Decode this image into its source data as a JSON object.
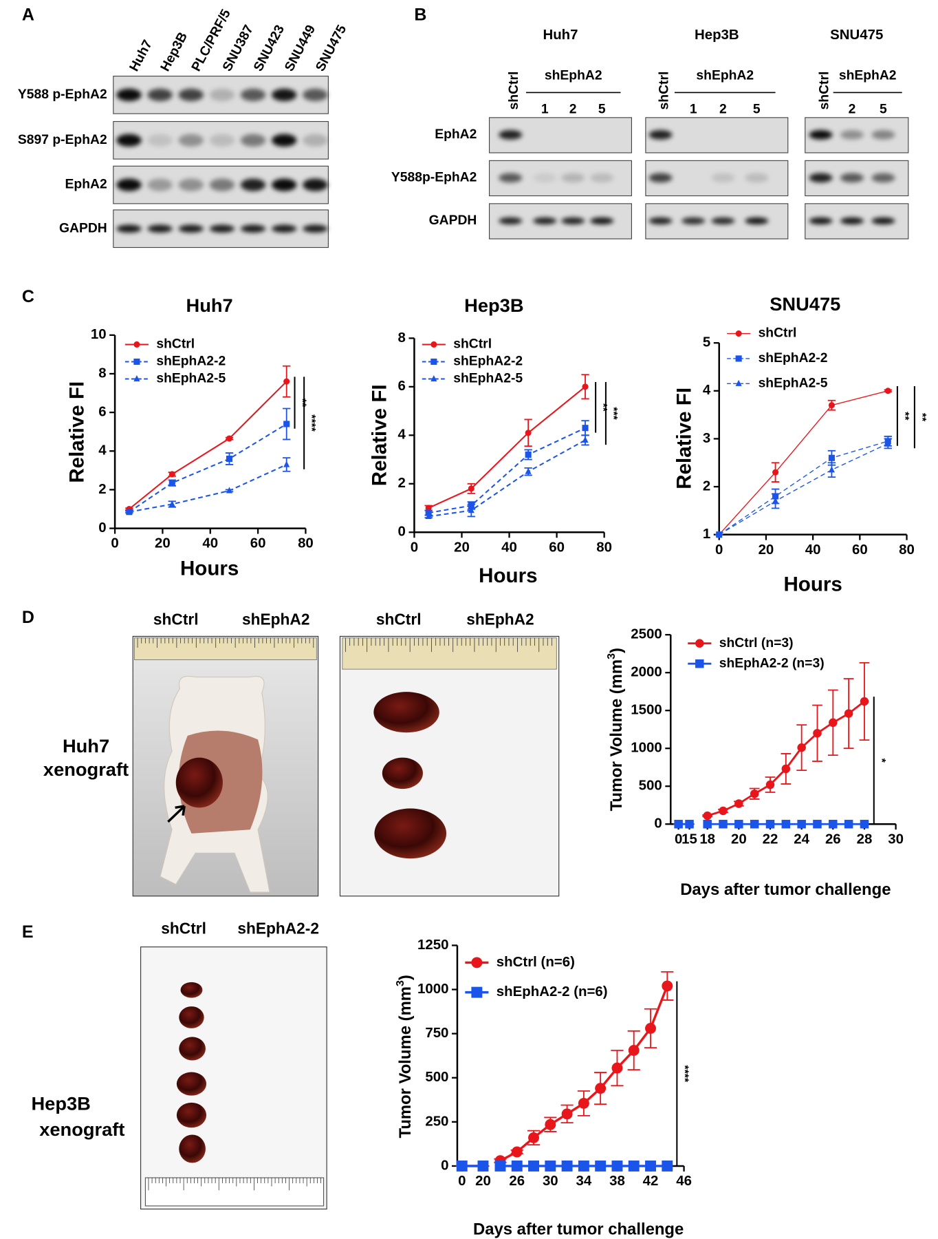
{
  "panel_labels": [
    "A",
    "B",
    "C",
    "D",
    "E"
  ],
  "blot_a": {
    "lanes": [
      "Huh7",
      "Hep3B",
      "PLC/PRF/5",
      "SNU387",
      "SNU423",
      "SNU449",
      "SNU475"
    ],
    "rows": [
      "Y588 p-EphA2",
      "S897 p-EphA2",
      "EphA2",
      "GAPDH"
    ]
  },
  "blot_b": {
    "rows": [
      "EphA2",
      "Y588p-EphA2",
      "GAPDH"
    ],
    "groups": [
      {
        "title": "Huh7",
        "control": "shCtrl",
        "knockdown": "shEphA2",
        "clones": [
          "1",
          "2",
          "5"
        ]
      },
      {
        "title": "Hep3B",
        "control": "shCtrl",
        "knockdown": "shEphA2",
        "clones": [
          "1",
          "2",
          "5"
        ]
      },
      {
        "title": "SNU475",
        "control": "shCtrl",
        "knockdown": "shEphA2",
        "clones": [
          "2",
          "5"
        ]
      }
    ]
  },
  "xenograft_d": {
    "model": [
      "Huh7",
      "xenograft"
    ],
    "photo_labels": [
      [
        "shCtrl",
        "shEphA2"
      ],
      [
        "shCtrl",
        "shEphA2"
      ]
    ]
  },
  "xenograft_e": {
    "model": [
      "Hep3B",
      "xenograft"
    ],
    "photo_labels": [
      "shCtrl",
      "shEphA2-2"
    ]
  },
  "chart_data": [
    {
      "type": "line",
      "title": "Huh7",
      "xlabel": "Hours",
      "ylabel": "Relative FI",
      "x": [
        6,
        24,
        48,
        72
      ],
      "xlim": [
        0,
        80
      ],
      "xticks": [
        0,
        20,
        40,
        60,
        80
      ],
      "ylim": [
        0,
        10
      ],
      "yticks": [
        0,
        2,
        4,
        6,
        8,
        10
      ],
      "series": [
        {
          "name": "shCtrl",
          "color": "#e8161b",
          "marker": "circle",
          "dashed": false,
          "values": [
            1,
            2.8,
            4.65,
            7.6
          ],
          "errors": [
            0.05,
            0.1,
            0.05,
            0.8
          ]
        },
        {
          "name": "shEphA2-2",
          "color": "#1b54e8",
          "marker": "square",
          "dashed": true,
          "values": [
            0.85,
            2.35,
            3.6,
            5.4
          ],
          "errors": [
            0.05,
            0.15,
            0.3,
            0.8
          ]
        },
        {
          "name": "shEphA2-5",
          "color": "#1b54e8",
          "marker": "triangle",
          "dashed": true,
          "values": [
            0.85,
            1.25,
            1.95,
            3.3
          ],
          "errors": [
            0.05,
            0.15,
            0.05,
            0.35
          ]
        }
      ],
      "annotations": [
        "**",
        "****"
      ]
    },
    {
      "type": "line",
      "title": "Hep3B",
      "xlabel": "Hours",
      "ylabel": "Relative FI",
      "x": [
        6,
        24,
        48,
        72
      ],
      "xlim": [
        0,
        80
      ],
      "xticks": [
        0,
        20,
        40,
        60,
        80
      ],
      "ylim": [
        0,
        8
      ],
      "yticks": [
        0,
        2,
        4,
        6,
        8
      ],
      "series": [
        {
          "name": "shCtrl",
          "color": "#e8161b",
          "marker": "circle",
          "dashed": false,
          "values": [
            1,
            1.8,
            4.1,
            6.0
          ],
          "errors": [
            0.1,
            0.2,
            0.55,
            0.5
          ]
        },
        {
          "name": "shEphA2-2",
          "color": "#1b54e8",
          "marker": "square",
          "dashed": true,
          "values": [
            0.8,
            1.1,
            3.2,
            4.3
          ],
          "errors": [
            0.1,
            0.15,
            0.2,
            0.3
          ]
        },
        {
          "name": "shEphA2-5",
          "color": "#1b54e8",
          "marker": "triangle",
          "dashed": true,
          "values": [
            0.65,
            0.9,
            2.5,
            3.8
          ],
          "errors": [
            0.05,
            0.25,
            0.15,
            0.2
          ]
        }
      ],
      "annotations": [
        "**",
        "***"
      ]
    },
    {
      "type": "line",
      "title": "SNU475",
      "xlabel": "Hours",
      "ylabel": "Relative FI",
      "x": [
        0,
        24,
        48,
        72
      ],
      "xlim": [
        0,
        80
      ],
      "xticks": [
        0,
        20,
        40,
        60,
        80
      ],
      "ylim": [
        1,
        5
      ],
      "yticks": [
        1,
        2,
        3,
        4,
        5
      ],
      "series": [
        {
          "name": "shCtrl",
          "color": "#e8161b",
          "marker": "circle",
          "dashed": false,
          "values": [
            1,
            2.3,
            3.7,
            4.0
          ],
          "errors": [
            0,
            0.2,
            0.1,
            0.02
          ]
        },
        {
          "name": "shEphA2-2",
          "color": "#1b54e8",
          "marker": "square",
          "dashed": true,
          "values": [
            1,
            1.8,
            2.6,
            2.95
          ],
          "errors": [
            0,
            0.15,
            0.15,
            0.1
          ]
        },
        {
          "name": "shEphA2-5",
          "color": "#1b54e8",
          "marker": "triangle",
          "dashed": true,
          "values": [
            1,
            1.7,
            2.35,
            2.9
          ],
          "errors": [
            0,
            0.15,
            0.15,
            0.1
          ]
        }
      ],
      "annotations": [
        "**",
        "**"
      ]
    },
    {
      "type": "line",
      "xlabel": "Days after tumor challenge",
      "ylabel": [
        "Tumor Volume (mm",
        "3",
        ")"
      ],
      "x": [
        0,
        15,
        18,
        19,
        20,
        21,
        22,
        23,
        24,
        25,
        26,
        27,
        28
      ],
      "x_segments": [
        [
          0,
          15
        ],
        [
          18,
          30
        ]
      ],
      "xlim": [
        0,
        30
      ],
      "xticks": [
        0,
        15,
        18,
        20,
        22,
        24,
        26,
        28,
        30
      ],
      "ylim": [
        0,
        2500
      ],
      "yticks": [
        0,
        500,
        1000,
        1500,
        2000,
        2500
      ],
      "series": [
        {
          "name": "shCtrl (n=3)",
          "color": "#e8161b",
          "marker": "circle",
          "dashed": false,
          "values": [
            0,
            0,
            110,
            175,
            270,
            400,
            520,
            730,
            1010,
            1200,
            1340,
            1460,
            1620
          ],
          "errors": [
            0,
            0,
            10,
            20,
            30,
            70,
            100,
            200,
            300,
            370,
            430,
            460,
            510
          ]
        },
        {
          "name": "shEphA2-2 (n=3)",
          "color": "#1b54e8",
          "marker": "square",
          "dashed": false,
          "values": [
            0,
            0,
            0,
            0,
            0,
            0,
            0,
            0,
            0,
            0,
            0,
            0,
            0
          ]
        }
      ],
      "annotations": [
        "*"
      ]
    },
    {
      "type": "line",
      "xlabel": "Days after tumor challenge",
      "ylabel": [
        "Tumor Volume (mm",
        "3",
        ")"
      ],
      "x": [
        0,
        20,
        24,
        26,
        28,
        30,
        32,
        34,
        36,
        38,
        40,
        42,
        44
      ],
      "x_segments": [
        [
          0,
          20
        ],
        [
          24,
          46
        ]
      ],
      "xlim": [
        0,
        46
      ],
      "xticks": [
        0,
        20,
        26,
        30,
        34,
        38,
        42,
        46
      ],
      "ylim": [
        0,
        1250
      ],
      "yticks": [
        0,
        250,
        500,
        750,
        1000,
        1250
      ],
      "series": [
        {
          "name": "shCtrl (n=6)",
          "color": "#e8161b",
          "marker": "circle",
          "dashed": false,
          "values": [
            0,
            0,
            30,
            80,
            160,
            235,
            295,
            355,
            440,
            555,
            655,
            780,
            1020
          ],
          "errors": [
            0,
            0,
            10,
            10,
            40,
            40,
            50,
            70,
            90,
            100,
            110,
            110,
            80
          ]
        },
        {
          "name": "shEphA2-2 (n=6)",
          "color": "#1b54e8",
          "marker": "square",
          "dashed": false,
          "values": [
            0,
            0,
            0,
            0,
            0,
            0,
            0,
            0,
            0,
            0,
            0,
            0,
            0
          ]
        }
      ],
      "annotations": [
        "****"
      ]
    }
  ]
}
